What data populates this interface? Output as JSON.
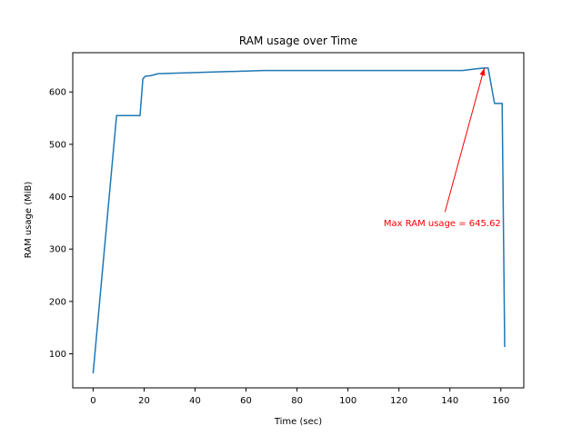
{
  "chart_data": {
    "type": "line",
    "title": "RAM usage over Time",
    "xlabel": "Time (sec)",
    "ylabel": "RAM usage (MiB)",
    "xlim": [
      -8,
      169
    ],
    "ylim": [
      35,
      675
    ],
    "xticks": [
      0,
      20,
      40,
      60,
      80,
      100,
      120,
      140,
      160
    ],
    "yticks": [
      100,
      200,
      300,
      400,
      500,
      600
    ],
    "grid": false,
    "series": [
      {
        "color": "#1f77b4",
        "x": [
          0,
          9.2,
          18.4,
          19.5,
          20.5,
          22.5,
          25.5,
          67,
          100,
          145,
          150,
          153.5,
          155,
          157.5,
          158,
          160.5,
          161.5
        ],
        "y": [
          63,
          555,
          555,
          625,
          630,
          631,
          635,
          641,
          641,
          641,
          644,
          645.62,
          645.62,
          578,
          578,
          578,
          113
        ]
      }
    ],
    "annotations": [
      {
        "text": "Max RAM usage = 645.62",
        "color": "#ff0000",
        "text_x": 137,
        "text_y": 350,
        "arrow_to_x": 153.5,
        "arrow_to_y": 645.62
      }
    ]
  }
}
